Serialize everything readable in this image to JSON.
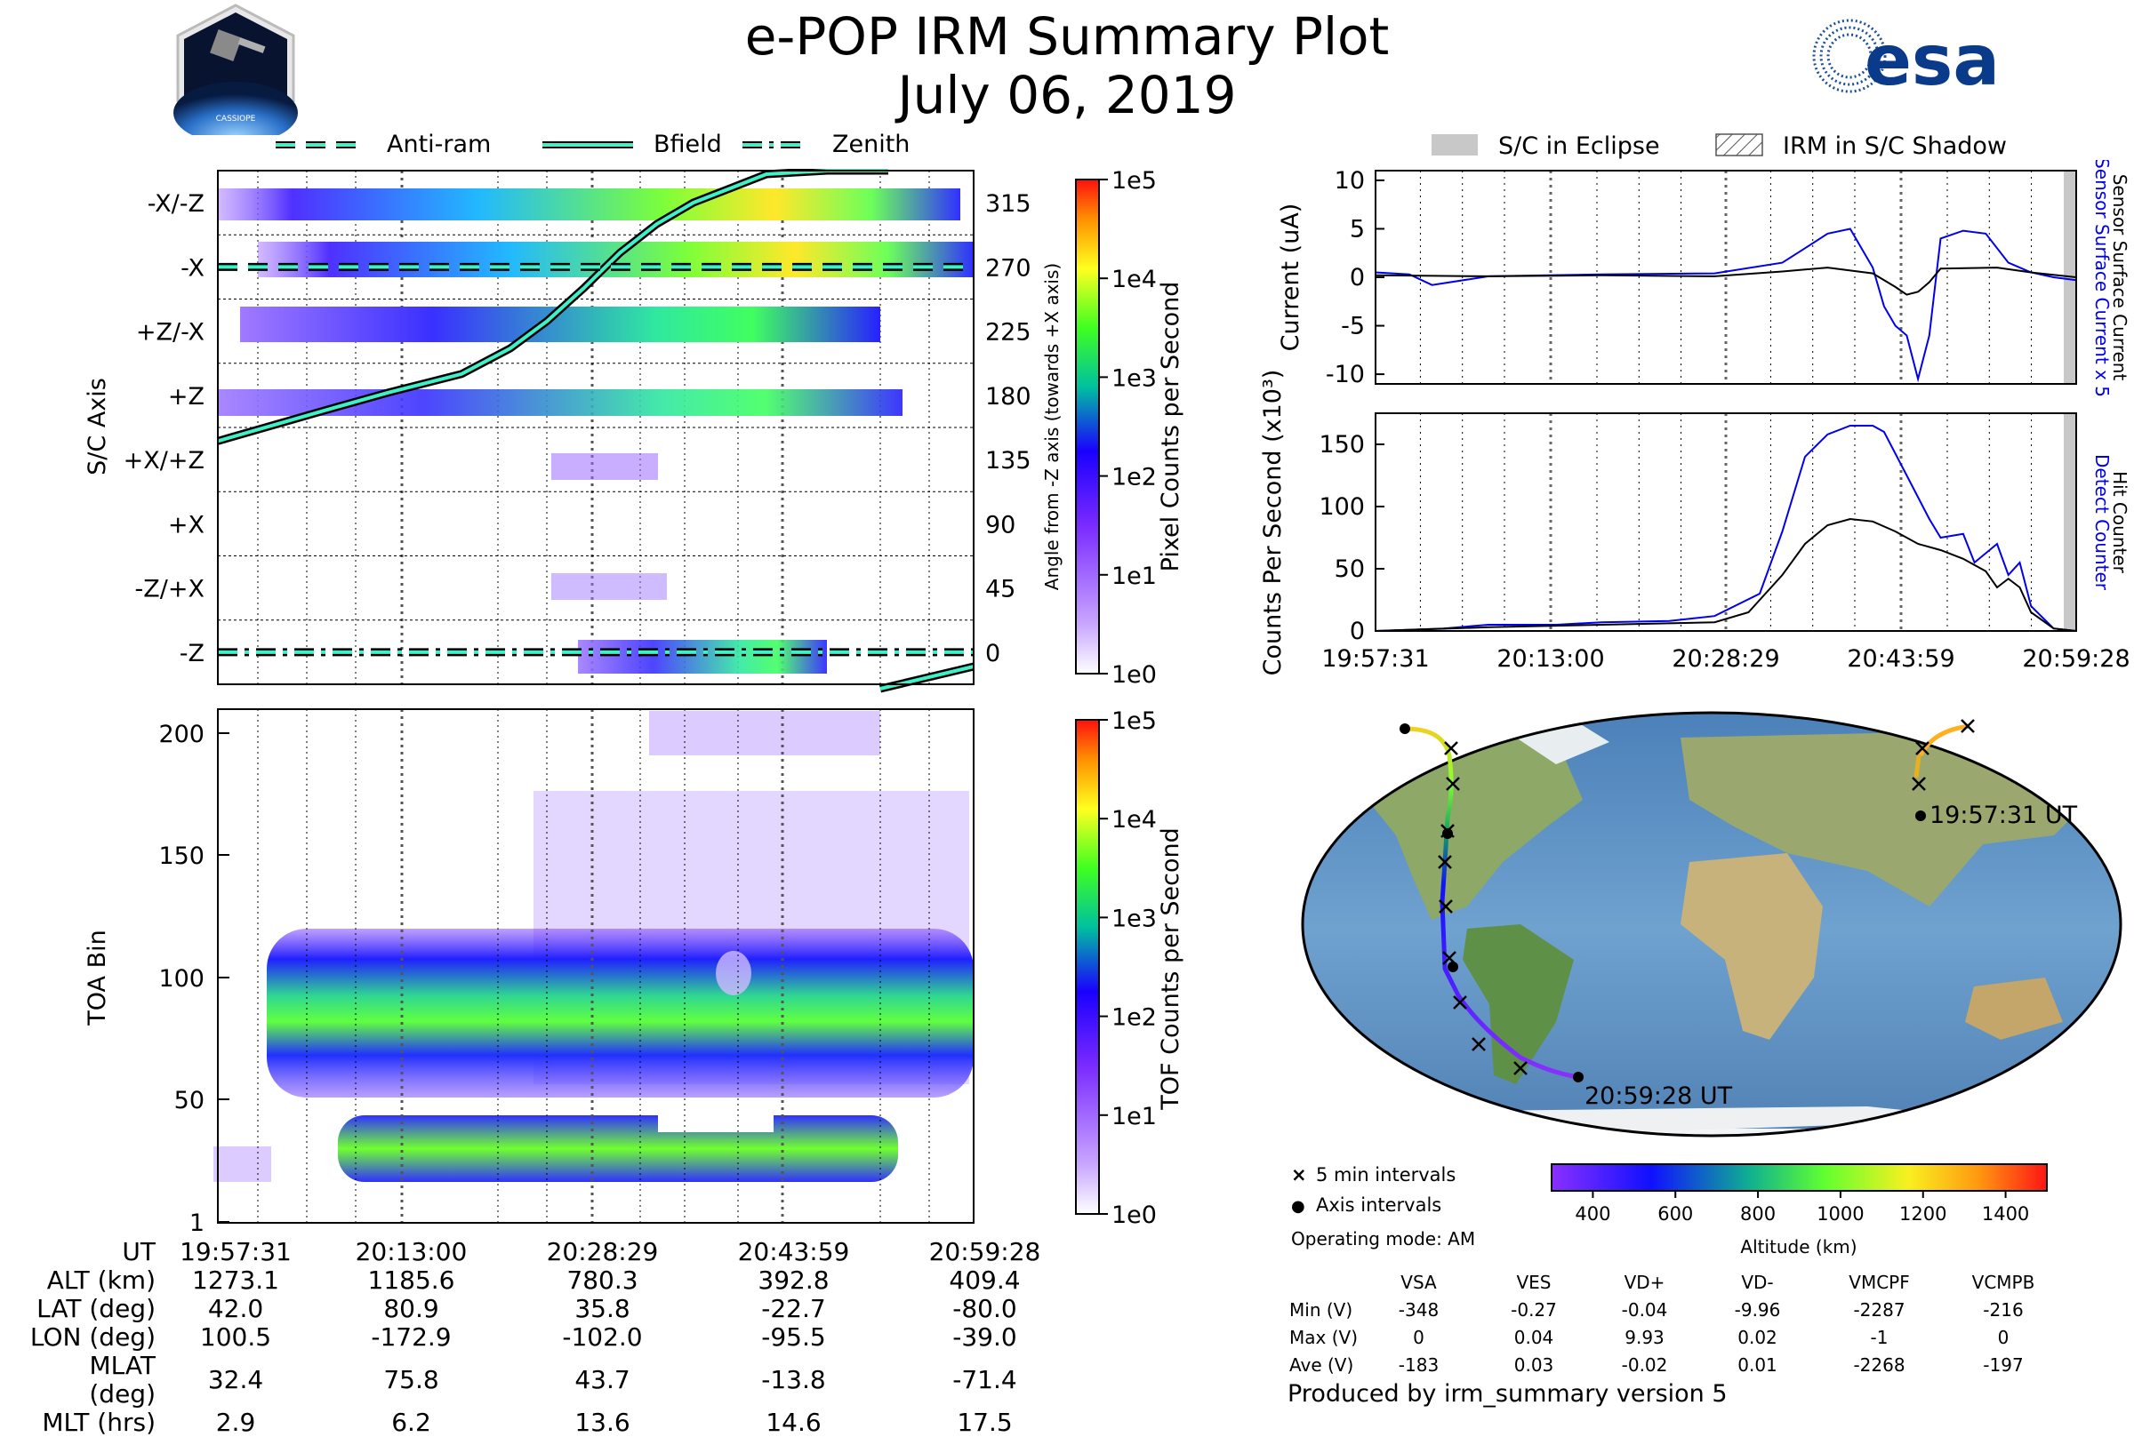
{
  "title": {
    "line1": "e-POP IRM Summary Plot",
    "line2": "July 06, 2019"
  },
  "logos": {
    "cassiope_text": "CASSIOPE",
    "esa_text": "esa"
  },
  "legend_top": [
    {
      "name": "anti-ram",
      "label": "Anti-ram",
      "style": "dashed"
    },
    {
      "name": "bfield",
      "label": "Bfield",
      "style": "solid"
    },
    {
      "name": "zenith",
      "label": "Zenith",
      "style": "dashdot"
    }
  ],
  "legend_right": [
    {
      "name": "eclipse",
      "label": "S/C in Eclipse"
    },
    {
      "name": "shadow",
      "label": "IRM in S/C Shadow"
    }
  ],
  "colors": {
    "line_cyan": "#3ef1c8",
    "blue": "#0000ee",
    "black": "#000000",
    "eclipse_gray": "#c8c8c8"
  },
  "time_ticks": [
    "19:57:31",
    "20:13:00",
    "20:28:29",
    "20:43:59",
    "20:59:28"
  ],
  "chart_data": [
    {
      "type": "heatmap",
      "name": "axis-spectrogram",
      "ylabel": "S/C Axis",
      "y2label": "Angle from -Z axis (towards +X axis)",
      "axis_labels": [
        "-X/-Z",
        "-X",
        "+Z/-X",
        "+Z",
        "+X/+Z",
        "+X",
        "-Z/+X",
        "-Z"
      ],
      "angle_ticks": [
        "315",
        "270",
        "225",
        "180",
        "135",
        "90",
        "45",
        "0"
      ],
      "colorbar": {
        "label": "Pixel Counts per Second",
        "ticks": [
          "1e5",
          "1e4",
          "1e3",
          "1e2",
          "1e1",
          "1e0"
        ]
      },
      "bfield_angle_deg": {
        "t_min": [
          0,
          9,
          14,
          20,
          24,
          27,
          30,
          33,
          36,
          39,
          42,
          45,
          50,
          55
        ],
        "angle": [
          148,
          170,
          182,
          195,
          213,
          232,
          255,
          280,
          300,
          315,
          325,
          335,
          345,
          350
        ]
      },
      "antiram_angle_deg": 270,
      "zenith_angle_deg": 0
    },
    {
      "type": "heatmap",
      "name": "toa-spectrogram",
      "ylabel": "TOA Bin",
      "yticks": [
        "200",
        "150",
        "100",
        "50",
        "1"
      ],
      "colorbar": {
        "label": "TOF Counts per Second",
        "ticks": [
          "1e5",
          "1e4",
          "1e3",
          "1e2",
          "1e1",
          "1e0"
        ]
      }
    },
    {
      "type": "line",
      "name": "current",
      "ylabel": "Current (uA)",
      "yticks": [
        "10",
        "5",
        "0",
        "-5",
        "-10"
      ],
      "ylim": [
        -11,
        11
      ],
      "right_label_blue": "Sensor Surface Current x 5",
      "right_label_black": "Sensor Surface Current",
      "series": [
        {
          "name": "Sensor Surface Current x 5",
          "color": "#0000ee",
          "x_min": [
            0,
            3,
            5,
            10,
            20,
            30,
            36,
            38,
            40,
            42,
            44,
            45,
            46,
            47,
            48,
            49,
            50,
            52,
            54,
            56,
            58,
            60,
            62
          ],
          "values": [
            0.5,
            0.3,
            -0.8,
            0.1,
            0.3,
            0.4,
            1.5,
            3,
            4.5,
            5,
            1,
            -3,
            -5,
            -6,
            -10.5,
            -6,
            4,
            4.8,
            4.5,
            1.5,
            0.5,
            0,
            -0.3
          ]
        },
        {
          "name": "Sensor Surface Current",
          "color": "#000000",
          "x_min": [
            0,
            10,
            20,
            30,
            36,
            40,
            44,
            46,
            47,
            48,
            49,
            50,
            55,
            58,
            62
          ],
          "values": [
            0.2,
            0.1,
            0.2,
            0.1,
            0.6,
            1.0,
            0.4,
            -1,
            -1.8,
            -1.5,
            -0.5,
            0.9,
            1.0,
            0.5,
            0.0
          ]
        }
      ]
    },
    {
      "type": "line",
      "name": "counts",
      "ylabel": "Counts Per Second (x10³)",
      "yticks": [
        "150",
        "100",
        "50",
        "0"
      ],
      "ylim": [
        0,
        175
      ],
      "right_label_blue": "Detect Counter",
      "right_label_black": "Hit Counter",
      "series": [
        {
          "name": "Detect Counter",
          "color": "#0000ee",
          "x_min": [
            0,
            6,
            10,
            16,
            20,
            26,
            30,
            34,
            36,
            38,
            40,
            42,
            44,
            45,
            47,
            49,
            50,
            52,
            53,
            55,
            56,
            57,
            58,
            60,
            62
          ],
          "values": [
            0,
            2,
            5,
            5,
            7,
            8,
            12,
            30,
            80,
            140,
            158,
            165,
            165,
            160,
            125,
            90,
            75,
            78,
            55,
            70,
            45,
            55,
            20,
            2,
            0
          ]
        },
        {
          "name": "Hit Counter",
          "color": "#000000",
          "x_min": [
            0,
            10,
            20,
            30,
            33,
            36,
            38,
            40,
            42,
            44,
            46,
            48,
            50,
            52,
            54,
            55,
            56,
            57,
            58,
            60,
            62
          ],
          "values": [
            0,
            3,
            5,
            7,
            15,
            45,
            70,
            85,
            90,
            88,
            80,
            70,
            65,
            58,
            48,
            35,
            42,
            35,
            15,
            2,
            0
          ]
        }
      ]
    }
  ],
  "map": {
    "label_start": "19:57:31 UT",
    "label_end": "20:59:28 UT",
    "legend": [
      {
        "name": "five-min",
        "symbol": "×",
        "label": "5 min intervals"
      },
      {
        "name": "axis",
        "symbol": "●",
        "label": "Axis intervals"
      }
    ],
    "colorbar": {
      "label": "Altitude (km)",
      "ticks": [
        "400",
        "600",
        "800",
        "1000",
        "1200",
        "1400"
      ]
    }
  },
  "operating_mode": "Operating mode: AM",
  "voltage_table": {
    "columns": [
      "VSA",
      "VES",
      "VD+",
      "VD-",
      "VMCPF",
      "VCMPB"
    ],
    "rows": [
      {
        "label": "Min (V)",
        "values": [
          "-348",
          "-0.27",
          "-0.04",
          "-9.96",
          "-2287",
          "-216"
        ]
      },
      {
        "label": "Max (V)",
        "values": [
          "0",
          "0.04",
          "9.93",
          "0.02",
          "-1",
          "0"
        ]
      },
      {
        "label": "Ave (V)",
        "values": [
          "-183",
          "0.03",
          "-0.02",
          "0.01",
          "-2268",
          "-197"
        ]
      }
    ]
  },
  "orbit_table": {
    "header": "UT",
    "times": [
      "19:57:31",
      "20:13:00",
      "20:28:29",
      "20:43:59",
      "20:59:28"
    ],
    "rows": [
      {
        "label": "ALT (km)",
        "values": [
          "1273.1",
          "1185.6",
          "780.3",
          "392.8",
          "409.4"
        ]
      },
      {
        "label": "LAT (deg)",
        "values": [
          "42.0",
          "80.9",
          "35.8",
          "-22.7",
          "-80.0"
        ]
      },
      {
        "label": "LON (deg)",
        "values": [
          "100.5",
          "-172.9",
          "-102.0",
          "-95.5",
          "-39.0"
        ]
      },
      {
        "label": "MLAT (deg)",
        "values": [
          "32.4",
          "75.8",
          "43.7",
          "-13.8",
          "-71.4"
        ]
      },
      {
        "label": "MLT (hrs)",
        "values": [
          "2.9",
          "6.2",
          "13.6",
          "14.6",
          "17.5"
        ]
      }
    ]
  },
  "footer": "Produced by irm_summary version 5"
}
